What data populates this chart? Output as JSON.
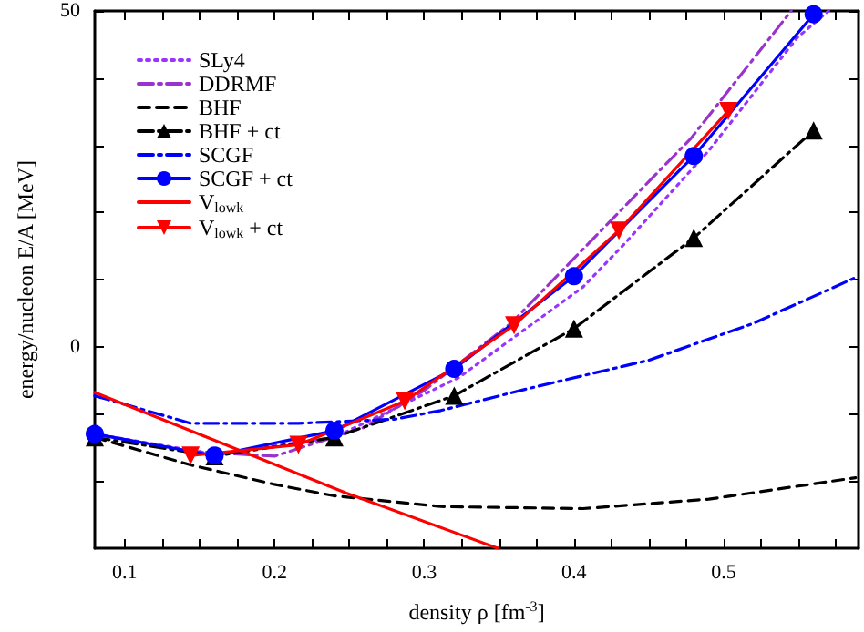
{
  "chart_data": {
    "type": "line",
    "xlabel": "density ρ [fm$^{-3}$]",
    "ylabel": "energy/nucleon E/A [MeV]",
    "xlim": [
      0.08,
      0.59
    ],
    "ylim": [
      -30,
      50
    ],
    "xticks": [
      {
        "value": 0.1,
        "label": "0.1"
      },
      {
        "value": 0.125,
        "label": null
      },
      {
        "value": 0.15,
        "label": null
      },
      {
        "value": 0.175,
        "label": null
      },
      {
        "value": 0.2,
        "label": "0.2"
      },
      {
        "value": 0.225,
        "label": null
      },
      {
        "value": 0.25,
        "label": null
      },
      {
        "value": 0.275,
        "label": null
      },
      {
        "value": 0.3,
        "label": "0.3"
      },
      {
        "value": 0.325,
        "label": null
      },
      {
        "value": 0.35,
        "label": null
      },
      {
        "value": 0.375,
        "label": null
      },
      {
        "value": 0.4,
        "label": "0.4"
      },
      {
        "value": 0.425,
        "label": null
      },
      {
        "value": 0.45,
        "label": null
      },
      {
        "value": 0.475,
        "label": null
      },
      {
        "value": 0.5,
        "label": "0.5"
      },
      {
        "value": 0.525,
        "label": null
      },
      {
        "value": 0.55,
        "label": null
      },
      {
        "value": 0.575,
        "label": null
      }
    ],
    "yticks": [
      {
        "value": -20,
        "label": null
      },
      {
        "value": -10,
        "label": null
      },
      0,
      {
        "value": 10,
        "label": null
      },
      {
        "value": 20,
        "label": null
      },
      {
        "value": 30,
        "label": null
      },
      {
        "value": 40,
        "label": null
      },
      50
    ],
    "grid": false,
    "legend": "top left",
    "series": [
      {
        "name": "SLy4",
        "color": "#9933ff",
        "line_style": "dotted",
        "marker": "none",
        "x": [
          0.08,
          0.16,
          0.24,
          0.323,
          0.406,
          0.434,
          0.49,
          0.549,
          0.57
        ],
        "values": [
          -13,
          -16,
          -13.5,
          -4.6,
          8.9,
          15.4,
          29.2,
          46,
          50
        ]
      },
      {
        "name": "DDRMF",
        "color": "#9933cc",
        "line_style": "dashdot",
        "marker": "none",
        "x": [
          0.08,
          0.14,
          0.2,
          0.26,
          0.3,
          0.358,
          0.398,
          0.478,
          0.545
        ],
        "values": [
          -13,
          -15.5,
          -16.3,
          -12,
          -6.5,
          3.5,
          12.7,
          31,
          50
        ]
      },
      {
        "name": "BHF",
        "color": "#000000",
        "line_style": "dashed",
        "marker": "none",
        "x": [
          0.08,
          0.144,
          0.2,
          0.24,
          0.311,
          0.406,
          0.49,
          0.588
        ],
        "values": [
          -13.5,
          -17.6,
          -20.5,
          -22.2,
          -23.8,
          -24.1,
          -22.7,
          -19.5
        ]
      },
      {
        "name": "BHF + ct",
        "color": "#000000",
        "line_style": "dashdot",
        "marker": "triangle",
        "x": [
          0.08,
          0.16,
          0.24,
          0.32,
          0.4,
          0.48,
          0.56
        ],
        "values": [
          -13.5,
          -16.3,
          -13.5,
          -7.3,
          2.7,
          16.2,
          32.2
        ]
      },
      {
        "name": "SCGF",
        "color": "#0000ff",
        "line_style": "dashdot",
        "marker": "none",
        "x": [
          0.08,
          0.144,
          0.216,
          0.28,
          0.311,
          0.37,
          0.45,
          0.52,
          0.588
        ],
        "values": [
          -7.3,
          -11.4,
          -11.4,
          -10.8,
          -9.5,
          -6.2,
          -2,
          3.5,
          10.3
        ]
      },
      {
        "name": "SCGF + ct",
        "color": "#0000ff",
        "line_style": "solid",
        "marker": "circle",
        "x": [
          0.08,
          0.16,
          0.24,
          0.32,
          0.4,
          0.48,
          0.56
        ],
        "values": [
          -13,
          -16.2,
          -12.5,
          -3.3,
          10.5,
          28.4,
          49.5
        ]
      },
      {
        "name": "V$_{lowk}$",
        "color": "#ff0000",
        "line_style": "solid",
        "marker": "none",
        "x": [
          0.08,
          0.248,
          0.349
        ],
        "values": [
          -6.8,
          -21.8,
          -30
        ]
      },
      {
        "name": "V$_{lowk}$ + ct",
        "color": "#ff0000",
        "line_style": "solid",
        "marker": "triangle-down",
        "x": [
          0.144,
          0.216,
          0.287,
          0.36,
          0.43,
          0.503
        ],
        "values": [
          -16.2,
          -14.6,
          -8.1,
          3.2,
          17.3,
          35.1
        ]
      }
    ]
  }
}
